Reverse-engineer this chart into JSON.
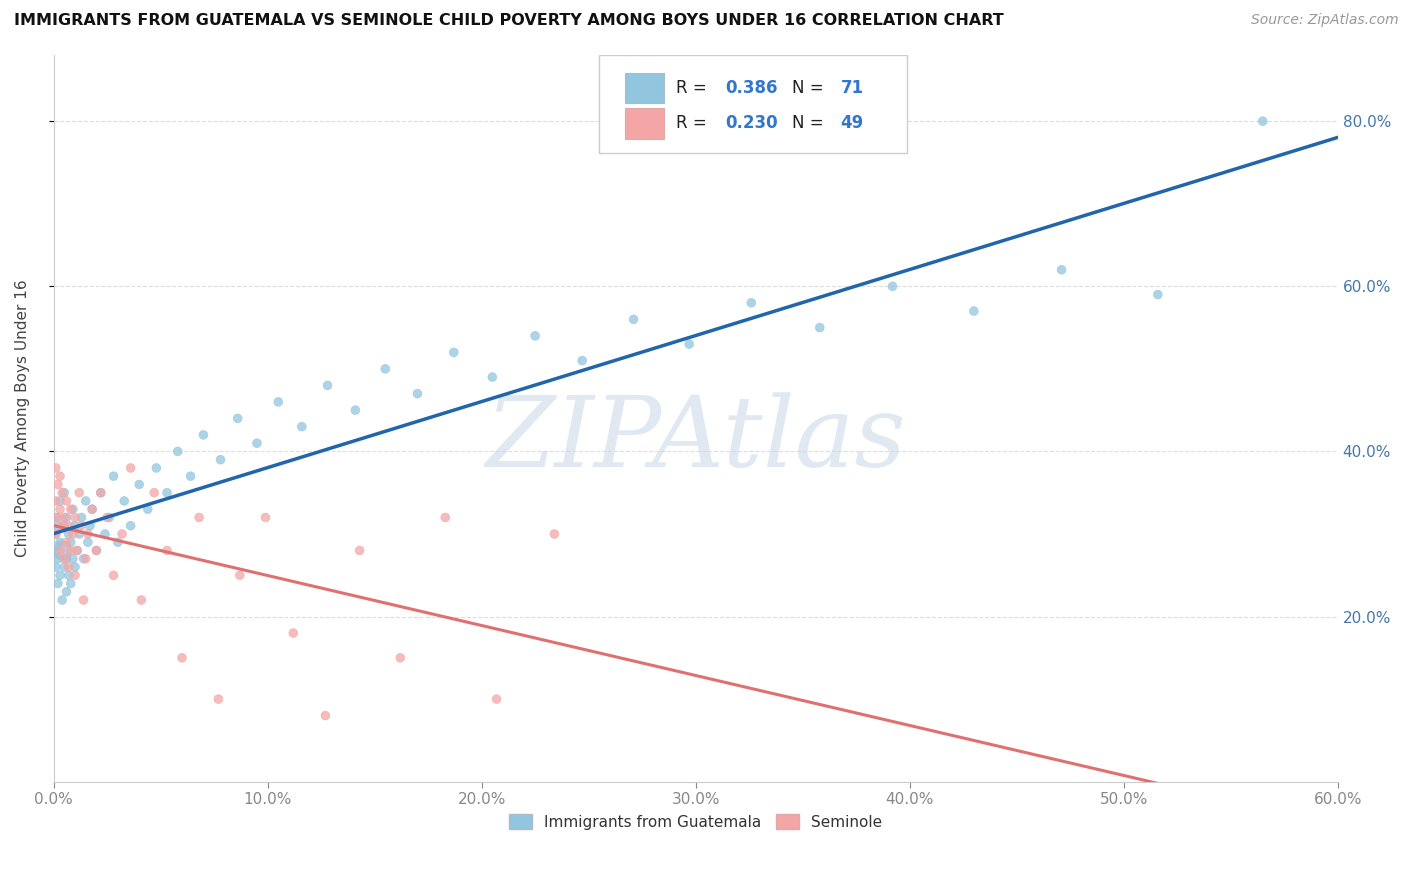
{
  "title": "IMMIGRANTS FROM GUATEMALA VS SEMINOLE CHILD POVERTY AMONG BOYS UNDER 16 CORRELATION CHART",
  "source": "Source: ZipAtlas.com",
  "ylabel": "Child Poverty Among Boys Under 16",
  "xlim": [
    0.0,
    0.6
  ],
  "ylim": [
    0.0,
    0.88
  ],
  "xtick_vals": [
    0.0,
    0.1,
    0.2,
    0.3,
    0.4,
    0.5,
    0.6
  ],
  "ytick_vals": [
    0.2,
    0.4,
    0.6,
    0.8
  ],
  "blue_color": "#92c5de",
  "pink_color": "#f4a6a6",
  "blue_line_color": "#2166ac",
  "pink_line_color": "#e07070",
  "watermark_text": "ZIPAtlas",
  "legend_entries": [
    {
      "label": "R = 0.386   N = 71",
      "color": "#92c5de"
    },
    {
      "label": "R = 0.230   N = 49",
      "color": "#f4a6a6"
    }
  ],
  "bottom_legend": [
    "Immigrants from Guatemala",
    "Seminole"
  ],
  "series1_R": 0.386,
  "series1_N": 71,
  "series2_R": 0.23,
  "series2_N": 49,
  "blue_x": [
    0.001,
    0.001,
    0.001,
    0.001,
    0.002,
    0.002,
    0.002,
    0.003,
    0.003,
    0.003,
    0.004,
    0.004,
    0.005,
    0.005,
    0.005,
    0.006,
    0.006,
    0.006,
    0.007,
    0.007,
    0.008,
    0.008,
    0.009,
    0.009,
    0.01,
    0.01,
    0.011,
    0.012,
    0.013,
    0.014,
    0.015,
    0.016,
    0.017,
    0.018,
    0.02,
    0.022,
    0.024,
    0.026,
    0.028,
    0.03,
    0.033,
    0.036,
    0.04,
    0.044,
    0.048,
    0.053,
    0.058,
    0.064,
    0.07,
    0.078,
    0.086,
    0.095,
    0.105,
    0.116,
    0.128,
    0.141,
    0.155,
    0.17,
    0.187,
    0.205,
    0.225,
    0.247,
    0.271,
    0.297,
    0.326,
    0.358,
    0.392,
    0.43,
    0.471,
    0.516,
    0.565
  ],
  "blue_y": [
    0.28,
    0.26,
    0.3,
    0.32,
    0.24,
    0.27,
    0.31,
    0.25,
    0.29,
    0.34,
    0.22,
    0.28,
    0.26,
    0.31,
    0.35,
    0.23,
    0.27,
    0.32,
    0.25,
    0.3,
    0.24,
    0.29,
    0.27,
    0.33,
    0.26,
    0.31,
    0.28,
    0.3,
    0.32,
    0.27,
    0.34,
    0.29,
    0.31,
    0.33,
    0.28,
    0.35,
    0.3,
    0.32,
    0.37,
    0.29,
    0.34,
    0.31,
    0.36,
    0.33,
    0.38,
    0.35,
    0.4,
    0.37,
    0.42,
    0.39,
    0.44,
    0.41,
    0.46,
    0.43,
    0.48,
    0.45,
    0.5,
    0.47,
    0.52,
    0.49,
    0.54,
    0.51,
    0.56,
    0.53,
    0.58,
    0.55,
    0.6,
    0.57,
    0.62,
    0.59,
    0.8
  ],
  "blue_size": [
    40,
    40,
    40,
    40,
    40,
    40,
    40,
    40,
    40,
    40,
    40,
    200,
    40,
    40,
    40,
    40,
    40,
    40,
    40,
    40,
    40,
    40,
    40,
    40,
    40,
    40,
    40,
    40,
    40,
    40,
    40,
    40,
    40,
    40,
    40,
    40,
    40,
    40,
    40,
    40,
    40,
    40,
    40,
    40,
    40,
    40,
    40,
    40,
    40,
    40,
    40,
    40,
    40,
    40,
    40,
    40,
    40,
    40,
    40,
    40,
    40,
    40,
    40,
    40,
    40,
    40,
    40,
    40,
    40,
    40,
    40
  ],
  "pink_x": [
    0.001,
    0.001,
    0.001,
    0.002,
    0.002,
    0.003,
    0.003,
    0.003,
    0.004,
    0.004,
    0.005,
    0.005,
    0.006,
    0.006,
    0.007,
    0.007,
    0.008,
    0.008,
    0.009,
    0.01,
    0.01,
    0.011,
    0.012,
    0.013,
    0.014,
    0.015,
    0.016,
    0.018,
    0.02,
    0.022,
    0.025,
    0.028,
    0.032,
    0.036,
    0.041,
    0.047,
    0.053,
    0.06,
    0.068,
    0.077,
    0.087,
    0.099,
    0.112,
    0.127,
    0.143,
    0.162,
    0.183,
    0.207,
    0.234
  ],
  "pink_y": [
    0.3,
    0.34,
    0.38,
    0.32,
    0.36,
    0.28,
    0.33,
    0.37,
    0.31,
    0.35,
    0.27,
    0.32,
    0.29,
    0.34,
    0.26,
    0.31,
    0.28,
    0.33,
    0.3,
    0.25,
    0.32,
    0.28,
    0.35,
    0.31,
    0.22,
    0.27,
    0.3,
    0.33,
    0.28,
    0.35,
    0.32,
    0.25,
    0.3,
    0.38,
    0.22,
    0.35,
    0.28,
    0.15,
    0.32,
    0.1,
    0.25,
    0.32,
    0.18,
    0.08,
    0.28,
    0.15,
    0.32,
    0.1,
    0.3
  ],
  "pink_size": [
    40,
    40,
    40,
    40,
    40,
    40,
    40,
    40,
    40,
    40,
    40,
    40,
    40,
    40,
    40,
    40,
    40,
    40,
    40,
    40,
    40,
    40,
    40,
    40,
    40,
    40,
    40,
    40,
    40,
    40,
    40,
    40,
    40,
    40,
    40,
    40,
    40,
    40,
    40,
    40,
    40,
    40,
    40,
    40,
    40,
    40,
    40,
    40,
    40
  ],
  "background_color": "#ffffff",
  "grid_color": "#dddddd"
}
